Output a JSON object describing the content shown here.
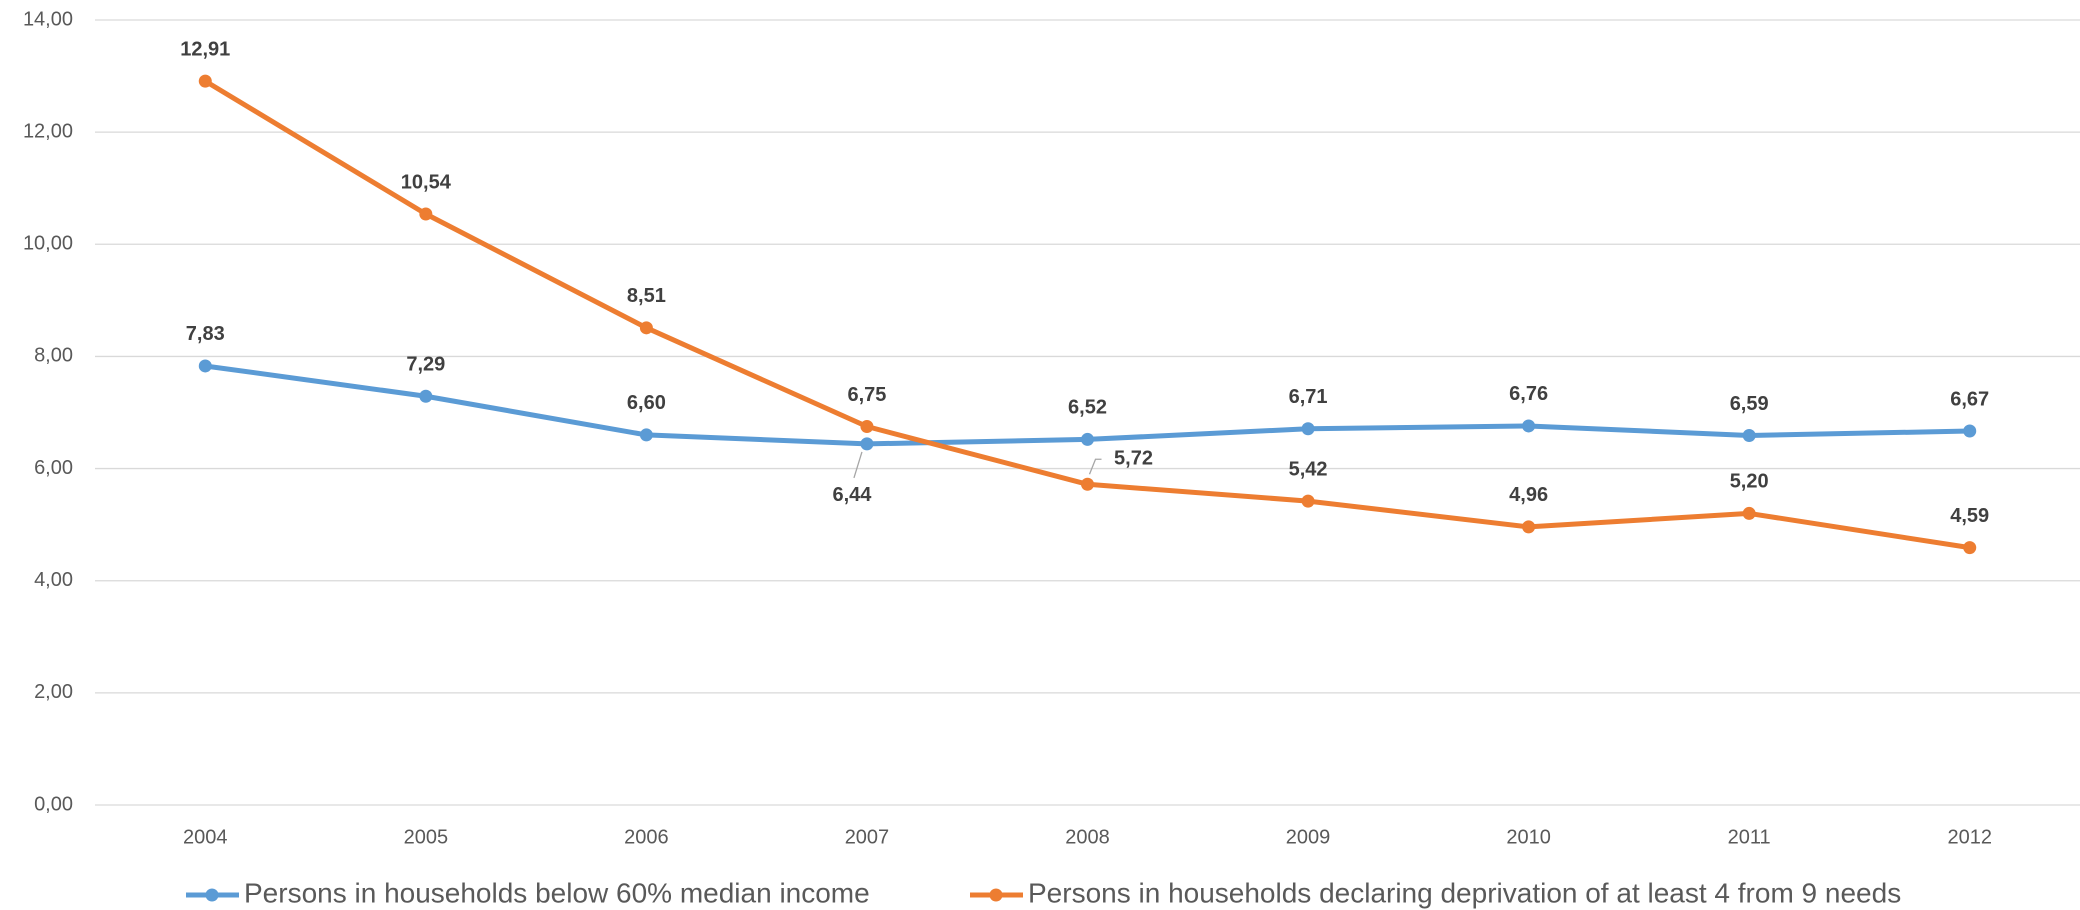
{
  "chart_data": {
    "type": "line",
    "categories": [
      "2004",
      "2005",
      "2006",
      "2007",
      "2008",
      "2009",
      "2010",
      "2011",
      "2012"
    ],
    "series": [
      {
        "name": "Persons in households below 60% median income",
        "color": "#5b9bd5",
        "values": [
          7.83,
          7.29,
          6.6,
          6.44,
          6.52,
          6.71,
          6.76,
          6.59,
          6.67
        ],
        "value_labels": [
          "7,83",
          "7,29",
          "6,60",
          "6,44",
          "6,52",
          "6,71",
          "6,76",
          "6,59",
          "6,67"
        ]
      },
      {
        "name": "Persons in households declaring deprivation of at least 4 from 9 needs",
        "color": "#ed7d31",
        "values": [
          12.91,
          10.54,
          8.51,
          6.75,
          5.72,
          5.42,
          4.96,
          5.2,
          4.59
        ],
        "value_labels": [
          "12,91",
          "10,54",
          "8,51",
          "6,75",
          "5,72",
          "5,42",
          "4,96",
          "5,20",
          "4,59"
        ]
      }
    ],
    "ylim": [
      0,
      14
    ],
    "yticks": [
      {
        "value": 0,
        "label": "0,00"
      },
      {
        "value": 2,
        "label": "2,00"
      },
      {
        "value": 4,
        "label": "4,00"
      },
      {
        "value": 6,
        "label": "6,00"
      },
      {
        "value": 8,
        "label": "8,00"
      },
      {
        "value": 10,
        "label": "10,00"
      },
      {
        "value": 12,
        "label": "12,00"
      },
      {
        "value": 14,
        "label": "14,00"
      }
    ],
    "grid": true
  }
}
